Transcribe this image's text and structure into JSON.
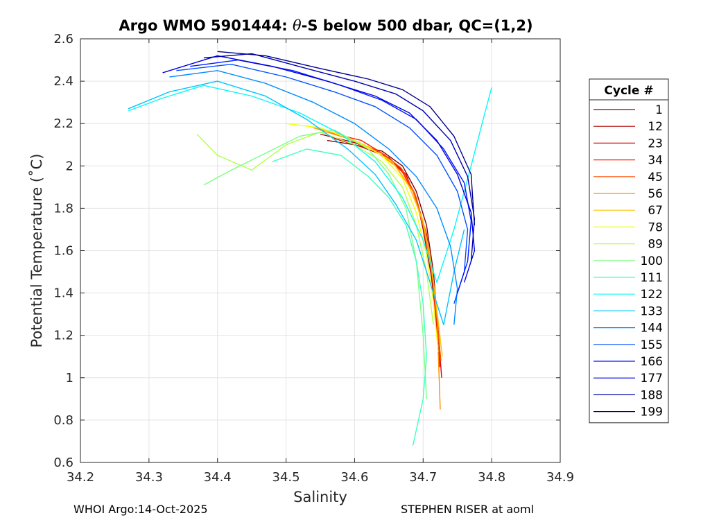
{
  "chart_data": {
    "type": "line",
    "title_parts": {
      "prefix": "Argo WMO 5901444: ",
      "theta": "θ",
      "suffix": "-S below 500 dbar,  QC=(1,2)"
    },
    "xlabel": "Salinity",
    "ylabel": "Potential Temperature (˚C)",
    "xlim": [
      34.2,
      34.9
    ],
    "ylim": [
      0.6,
      2.6
    ],
    "xticks": [
      "34.2",
      "34.3",
      "34.4",
      "34.5",
      "34.6",
      "34.7",
      "34.8",
      "34.9"
    ],
    "yticks": [
      "0.6",
      "0.8",
      "1",
      "1.2",
      "1.4",
      "1.6",
      "1.8",
      "2",
      "2.2",
      "2.4",
      "2.6"
    ],
    "grid": true,
    "legend": {
      "title": "Cycle #",
      "placement": "right-outside",
      "entries": [
        {
          "label": "1",
          "color": "#800000"
        },
        {
          "label": "12",
          "color": "#b00000"
        },
        {
          "label": "23",
          "color": "#e00000"
        },
        {
          "label": "34",
          "color": "#ff1a00"
        },
        {
          "label": "45",
          "color": "#ff5000"
        },
        {
          "label": "56",
          "color": "#ff8c00"
        },
        {
          "label": "67",
          "color": "#ffc400"
        },
        {
          "label": "78",
          "color": "#f0ff0f"
        },
        {
          "label": "89",
          "color": "#b4ff4b"
        },
        {
          "label": "100",
          "color": "#7cff83"
        },
        {
          "label": "111",
          "color": "#40ffbf"
        },
        {
          "label": "122",
          "color": "#08f7f7"
        },
        {
          "label": "133",
          "color": "#00c4ff"
        },
        {
          "label": "144",
          "color": "#008cff"
        },
        {
          "label": "155",
          "color": "#0050ff"
        },
        {
          "label": "166",
          "color": "#0018ff"
        },
        {
          "label": "177",
          "color": "#0000e0"
        },
        {
          "label": "188",
          "color": "#0000b0"
        },
        {
          "label": "199",
          "color": "#000090"
        }
      ]
    },
    "series": [
      {
        "label": "1",
        "color": "#800000",
        "x": [
          34.56,
          34.6,
          34.64,
          34.67,
          34.69,
          34.705,
          34.715,
          34.72,
          34.725
        ],
        "y": [
          2.12,
          2.1,
          2.07,
          2.0,
          1.88,
          1.72,
          1.5,
          1.3,
          1.1
        ]
      },
      {
        "label": "12",
        "color": "#b00000",
        "x": [
          34.55,
          34.6,
          34.64,
          34.67,
          34.69,
          34.7,
          34.712,
          34.72,
          34.724
        ],
        "y": [
          2.15,
          2.11,
          2.06,
          1.98,
          1.85,
          1.7,
          1.48,
          1.25,
          1.05
        ]
      },
      {
        "label": "23",
        "color": "#e00000",
        "x": [
          34.57,
          34.61,
          34.65,
          34.675,
          34.69,
          34.705,
          34.715,
          34.722,
          34.727
        ],
        "y": [
          2.13,
          2.09,
          2.04,
          1.96,
          1.84,
          1.68,
          1.46,
          1.22,
          1.0
        ]
      },
      {
        "label": "34",
        "color": "#ff1a00",
        "x": [
          34.56,
          34.61,
          34.645,
          34.67,
          34.69,
          34.703,
          34.714,
          34.72
        ],
        "y": [
          2.16,
          2.12,
          2.05,
          1.97,
          1.85,
          1.69,
          1.47,
          1.2
        ]
      },
      {
        "label": "45",
        "color": "#ff5000",
        "x": [
          34.55,
          34.6,
          34.64,
          34.668,
          34.688,
          34.702,
          34.713,
          34.72,
          34.726
        ],
        "y": [
          2.17,
          2.12,
          2.06,
          1.99,
          1.87,
          1.71,
          1.5,
          1.28,
          1.08
        ]
      },
      {
        "label": "56",
        "color": "#ff8c00",
        "x": [
          34.54,
          34.59,
          34.63,
          34.66,
          34.685,
          34.7,
          34.712,
          34.72,
          34.725
        ],
        "y": [
          2.18,
          2.13,
          2.07,
          2.0,
          1.88,
          1.72,
          1.52,
          1.3,
          0.85
        ]
      },
      {
        "label": "67",
        "color": "#ffc400",
        "x": [
          34.53,
          34.58,
          34.62,
          34.655,
          34.68,
          34.7,
          34.712,
          34.72,
          34.728
        ],
        "y": [
          2.19,
          2.15,
          2.09,
          2.02,
          1.9,
          1.74,
          1.54,
          1.32,
          1.1
        ]
      },
      {
        "label": "78",
        "color": "#f0ff0f",
        "x": [
          34.5,
          34.55,
          34.6,
          34.64,
          34.67,
          34.69,
          34.705,
          34.715,
          34.722
        ],
        "y": [
          2.2,
          2.18,
          2.12,
          2.05,
          1.94,
          1.78,
          1.58,
          1.36,
          1.12
        ]
      },
      {
        "label": "89",
        "color": "#b4ff4b",
        "x": [
          34.37,
          34.4,
          34.45,
          34.5,
          34.55,
          34.6,
          34.64,
          34.67,
          34.69,
          34.705,
          34.715
        ],
        "y": [
          2.15,
          2.05,
          1.98,
          2.1,
          2.16,
          2.1,
          2.02,
          1.9,
          1.72,
          1.5,
          1.25
        ]
      },
      {
        "label": "100",
        "color": "#7cff83",
        "x": [
          34.38,
          34.42,
          34.47,
          34.52,
          34.57,
          34.62,
          34.65,
          34.675,
          34.69,
          34.7,
          34.705
        ],
        "y": [
          1.91,
          1.98,
          2.06,
          2.14,
          2.17,
          2.08,
          1.96,
          1.8,
          1.55,
          1.2,
          0.9
        ]
      },
      {
        "label": "111",
        "color": "#40ffbf",
        "x": [
          34.48,
          34.53,
          34.58,
          34.62,
          34.65,
          34.675,
          34.69,
          34.7,
          34.705,
          34.7,
          34.685
        ],
        "y": [
          2.02,
          2.08,
          2.05,
          1.95,
          1.85,
          1.72,
          1.55,
          1.35,
          1.1,
          0.9,
          0.68
        ]
      },
      {
        "label": "122",
        "color": "#08f7f7",
        "x": [
          34.27,
          34.32,
          34.38,
          34.45,
          34.52,
          34.58,
          34.63,
          34.67,
          34.7,
          34.72,
          34.745,
          34.77,
          34.79,
          34.8
        ],
        "y": [
          2.26,
          2.32,
          2.38,
          2.33,
          2.25,
          2.15,
          2.02,
          1.85,
          1.65,
          1.45,
          1.7,
          2.0,
          2.25,
          2.37
        ]
      },
      {
        "label": "133",
        "color": "#00c4ff",
        "x": [
          34.27,
          34.33,
          34.4,
          34.47,
          34.53,
          34.59,
          34.63,
          34.66,
          34.69,
          34.71,
          34.73,
          34.745,
          34.76
        ],
        "y": [
          2.27,
          2.35,
          2.4,
          2.33,
          2.22,
          2.08,
          1.96,
          1.82,
          1.65,
          1.45,
          1.25,
          1.5,
          1.7
        ]
      },
      {
        "label": "144",
        "color": "#008cff",
        "x": [
          34.33,
          34.4,
          34.47,
          34.54,
          34.6,
          34.65,
          34.69,
          34.72,
          34.74,
          34.75,
          34.745
        ],
        "y": [
          2.42,
          2.45,
          2.39,
          2.3,
          2.2,
          2.08,
          1.95,
          1.8,
          1.62,
          1.42,
          1.25
        ]
      },
      {
        "label": "155",
        "color": "#0050ff",
        "x": [
          34.34,
          34.42,
          34.5,
          34.57,
          34.63,
          34.68,
          34.72,
          34.75,
          34.765,
          34.76,
          34.745
        ],
        "y": [
          2.45,
          2.48,
          2.42,
          2.35,
          2.28,
          2.18,
          2.05,
          1.88,
          1.7,
          1.5,
          1.35
        ]
      },
      {
        "label": "166",
        "color": "#0018ff",
        "x": [
          34.36,
          34.43,
          34.51,
          34.58,
          34.64,
          34.69,
          34.73,
          34.76,
          34.77,
          34.765,
          34.75
        ],
        "y": [
          2.47,
          2.5,
          2.45,
          2.38,
          2.31,
          2.22,
          2.08,
          1.92,
          1.74,
          1.55,
          1.4
        ]
      },
      {
        "label": "177",
        "color": "#0000e0",
        "x": [
          34.32,
          34.4,
          34.48,
          34.56,
          34.63,
          34.68,
          34.72,
          34.75,
          34.77,
          34.775,
          34.76
        ],
        "y": [
          2.44,
          2.52,
          2.47,
          2.4,
          2.33,
          2.25,
          2.12,
          1.96,
          1.78,
          1.6,
          1.45
        ]
      },
      {
        "label": "188",
        "color": "#0000b0",
        "x": [
          34.38,
          34.45,
          34.53,
          34.6,
          34.66,
          34.7,
          34.74,
          34.765,
          34.775,
          34.77
        ],
        "y": [
          2.51,
          2.53,
          2.46,
          2.4,
          2.34,
          2.26,
          2.12,
          1.95,
          1.75,
          1.55
        ]
      },
      {
        "label": "199",
        "color": "#000090",
        "x": [
          34.4,
          34.47,
          34.55,
          34.62,
          34.67,
          34.71,
          34.745,
          34.77,
          34.775
        ],
        "y": [
          2.54,
          2.52,
          2.46,
          2.41,
          2.36,
          2.28,
          2.14,
          1.96,
          1.72
        ]
      }
    ]
  },
  "footer": {
    "left": "WHOI Argo:14-Oct-2025",
    "right": "STEPHEN RISER at aoml"
  }
}
